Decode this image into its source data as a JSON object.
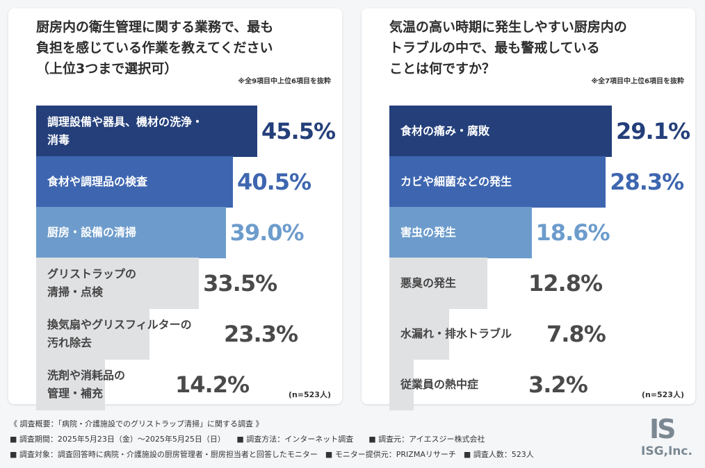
{
  "chart_data": [
    {
      "type": "bar",
      "orientation": "horizontal",
      "title": "厨房内の衛生管理に関する業務で、最も\n負担を感じている作業を教えてください\n（上位3つまで選択可）",
      "note": "※全9項目中上位6項目を抜粋",
      "categories": [
        "調理設備や器具、機材の洗浄・\n消毒",
        "食材や調理品の検査",
        "厨房・設備の清掃",
        "グリストラップの\n清掃・点検",
        "換気扇やグリスフィルターの\n汚れ除去",
        "洗剤や消耗品の\n管理・補充"
      ],
      "values": [
        45.5,
        40.5,
        39.0,
        33.5,
        23.3,
        14.2
      ],
      "value_labels": [
        "45.5%",
        "40.5%",
        "39.0%",
        "33.5%",
        "23.3%",
        "14.2%"
      ],
      "max": 45.5,
      "bar_colors": [
        "#243f7a",
        "#3e66b0",
        "#6d9ccc",
        "#e0e1e3",
        "#e0e1e3",
        "#e0e1e3"
      ],
      "label_colors": [
        "#ffffff",
        "#ffffff",
        "#ffffff",
        "#444444",
        "#444444",
        "#444444"
      ],
      "value_colors": [
        "#243f7a",
        "#3e66b0",
        "#6d9ccc",
        "#4a4a4a",
        "#4a4a4a",
        "#4a4a4a"
      ],
      "sample": "(n=523人)"
    },
    {
      "type": "bar",
      "orientation": "horizontal",
      "title": "気温の高い時期に発生しやすい厨房内の\nトラブルの中で、最も警戒している\nことは何ですか？",
      "note": "※全7項目中上位6項目を抜粋",
      "categories": [
        "食材の痛み・腐敗",
        "カビや細菌などの発生",
        "害虫の発生",
        "悪臭の発生",
        "水漏れ・排水トラブル",
        "従業員の熱中症"
      ],
      "values": [
        29.1,
        28.3,
        18.6,
        12.8,
        7.8,
        3.2
      ],
      "value_labels": [
        "29.1%",
        "28.3%",
        "18.6%",
        "12.8%",
        "7.8%",
        "3.2%"
      ],
      "max": 29.1,
      "bar_colors": [
        "#243f7a",
        "#3e66b0",
        "#6d9ccc",
        "#e0e1e3",
        "#e0e1e3",
        "#e0e1e3"
      ],
      "label_colors": [
        "#ffffff",
        "#ffffff",
        "#ffffff",
        "#444444",
        "#444444",
        "#444444"
      ],
      "value_colors": [
        "#243f7a",
        "#3e66b0",
        "#6d9ccc",
        "#4a4a4a",
        "#4a4a4a",
        "#4a4a4a"
      ],
      "sample": "(n=523人)"
    }
  ],
  "footer": {
    "line1": "《 調査概要：「病院・介護施設でのグリストラップ清掃」に関する調査 》",
    "line2": "■ 調査期間：2025年5月23日（金）〜2025年5月25日（日）　　■ 調査方法：インターネット調査　　■ 調査元：アイエスジー株式会社",
    "line3": "■ 調査対象：調査回答時に病院・介護施設の厨房管理者・厨房担当者と回答したモニター　■ モニター提供元：PRIZMAリサーチ　■ 調査人数：523人"
  },
  "logo": {
    "mark": "IS",
    "text": "ISG,Inc."
  }
}
